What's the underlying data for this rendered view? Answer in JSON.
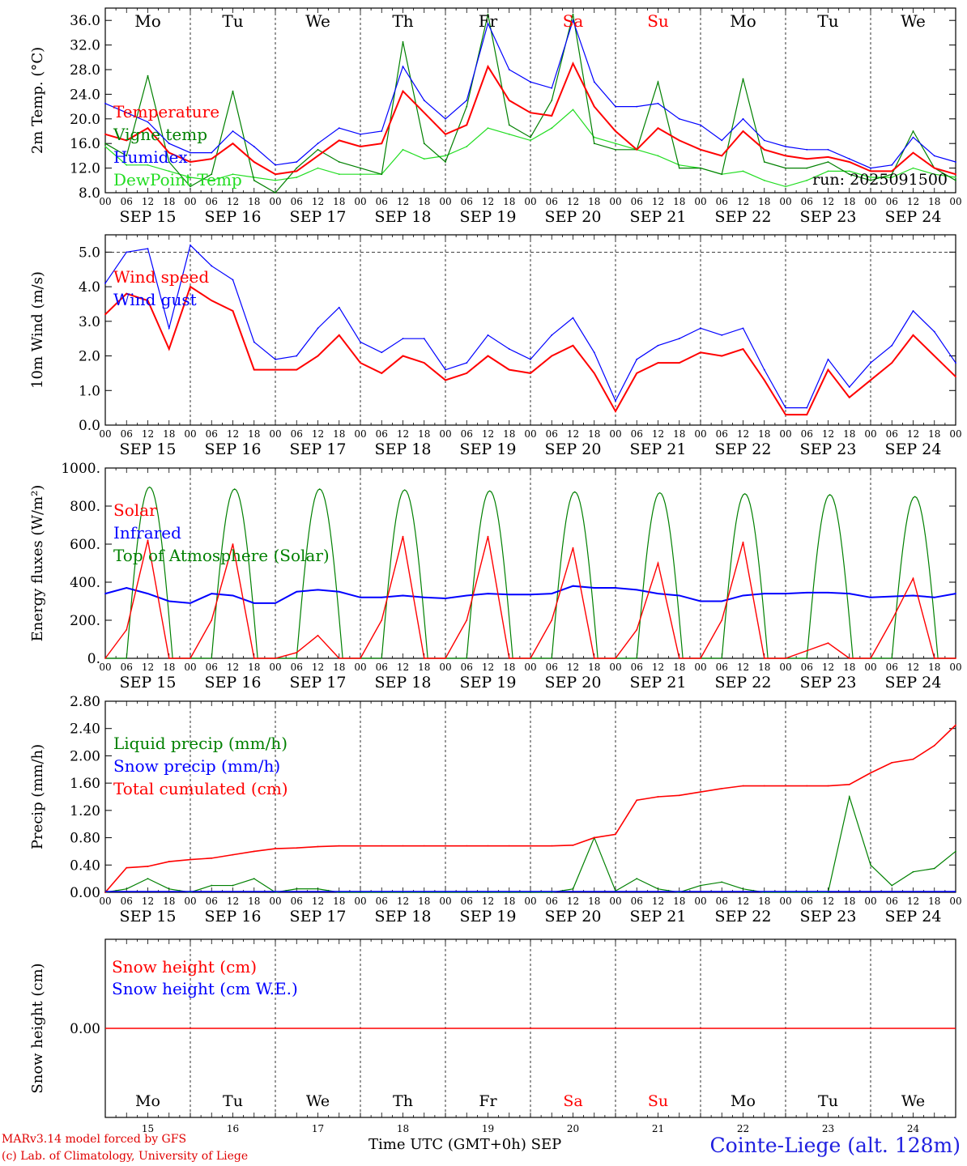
{
  "chart_data": [
    {
      "type": "line",
      "ylabel": "2m Temp. (°C)",
      "ylim": [
        8,
        38
      ],
      "yticks": [
        "8.0",
        "12.0",
        "16.0",
        "20.0",
        "24.0",
        "28.0",
        "32.0",
        "36.0"
      ],
      "x_hours": [
        0,
        6,
        12,
        18,
        24,
        30,
        36,
        42,
        48,
        54,
        60,
        66,
        72,
        78,
        84,
        90,
        96,
        102,
        108,
        114,
        120,
        126,
        132,
        138,
        144,
        150,
        156,
        162,
        168,
        174,
        180,
        186,
        192,
        198,
        204,
        210,
        216,
        222,
        228,
        234,
        240
      ],
      "annotation": "run: 2025091500",
      "series": [
        {
          "name": "Temperature",
          "color": "#ff0000",
          "values": [
            17.5,
            16.5,
            18.5,
            14.5,
            13,
            13.5,
            16,
            13,
            11,
            11.5,
            14,
            16.5,
            15.5,
            16,
            24.5,
            21,
            17.5,
            19,
            28.5,
            23,
            21,
            20.5,
            29,
            22,
            18,
            15,
            18.5,
            16.5,
            15,
            14,
            18,
            15,
            14,
            13.5,
            13.8,
            13,
            11.5,
            11.5,
            14.5,
            12,
            11
          ]
        },
        {
          "name": "Vigne temp",
          "color": "#008000",
          "values": [
            16,
            14,
            27,
            13,
            9,
            11,
            24.5,
            10,
            8,
            12,
            15,
            13,
            12,
            11,
            32.5,
            16,
            13,
            22,
            37,
            19,
            17,
            23,
            37,
            16,
            15,
            15,
            26,
            12,
            12,
            11,
            26.5,
            13,
            12,
            12,
            13,
            11,
            10,
            11,
            18,
            12,
            10
          ]
        },
        {
          "name": "Humidex",
          "color": "#0000ff",
          "values": [
            22.5,
            21,
            19.5,
            16,
            14.5,
            14.5,
            18,
            15.5,
            12.5,
            13,
            16,
            18.5,
            17.5,
            18,
            28.5,
            23,
            20,
            23,
            35.5,
            28,
            26,
            25,
            36,
            26,
            22,
            22,
            22.5,
            20,
            19,
            16.5,
            20,
            16.5,
            15.5,
            15,
            15,
            13.5,
            12,
            12.5,
            17,
            14,
            13
          ]
        },
        {
          "name": "DewPoint Temp",
          "color": "#22dd22",
          "values": [
            15.5,
            12.5,
            12.5,
            11.5,
            10.5,
            10,
            11,
            10.5,
            10,
            10.5,
            12,
            11,
            11,
            11,
            15,
            13.5,
            14,
            15.5,
            18.5,
            17.5,
            16.5,
            18.5,
            21.5,
            17,
            16,
            15,
            14,
            12.5,
            12,
            11,
            11.5,
            10,
            9,
            10,
            11.5,
            11.5,
            10.5,
            10.5,
            12,
            11,
            10.5
          ]
        }
      ]
    },
    {
      "type": "line",
      "ylabel": "10m Wind (m/s)",
      "ylim": [
        0,
        5.5
      ],
      "yticks": [
        "0.0",
        "1.0",
        "2.0",
        "3.0",
        "4.0",
        "5.0"
      ],
      "x_hours": [
        0,
        6,
        12,
        18,
        24,
        30,
        36,
        42,
        48,
        54,
        60,
        66,
        72,
        78,
        84,
        90,
        96,
        102,
        108,
        114,
        120,
        126,
        132,
        138,
        144,
        150,
        156,
        162,
        168,
        174,
        180,
        186,
        192,
        198,
        204,
        210,
        216,
        222,
        228,
        234,
        240
      ],
      "series": [
        {
          "name": "Wind speed",
          "color": "#ff0000",
          "values": [
            3.2,
            3.8,
            3.6,
            2.2,
            4.0,
            3.6,
            3.3,
            1.6,
            1.6,
            1.6,
            2.0,
            2.6,
            1.8,
            1.5,
            2.0,
            1.8,
            1.3,
            1.5,
            2.0,
            1.6,
            1.5,
            2.0,
            2.3,
            1.5,
            0.4,
            1.5,
            1.8,
            1.8,
            2.1,
            2.0,
            2.2,
            1.3,
            0.3,
            0.3,
            1.6,
            0.8,
            1.3,
            1.8,
            2.6,
            2.0,
            1.4
          ]
        },
        {
          "name": "Wind gust",
          "color": "#0000ff",
          "values": [
            4.1,
            5.0,
            5.1,
            2.8,
            5.2,
            4.6,
            4.2,
            2.4,
            1.9,
            2.0,
            2.8,
            3.4,
            2.4,
            2.1,
            2.5,
            2.5,
            1.6,
            1.8,
            2.6,
            2.2,
            1.9,
            2.6,
            3.1,
            2.1,
            0.7,
            1.9,
            2.3,
            2.5,
            2.8,
            2.6,
            2.8,
            1.6,
            0.5,
            0.5,
            1.9,
            1.1,
            1.8,
            2.3,
            3.3,
            2.7,
            1.8
          ]
        }
      ]
    },
    {
      "type": "line",
      "ylabel": "Energy fluxes (W/m²)",
      "ylim": [
        0,
        1000
      ],
      "yticks": [
        "0.",
        "200.",
        "400.",
        "600.",
        "800.",
        "1000."
      ],
      "x_hours": [
        0,
        6,
        12,
        18,
        24,
        30,
        36,
        42,
        48,
        54,
        60,
        66,
        72,
        78,
        84,
        90,
        96,
        102,
        108,
        114,
        120,
        126,
        132,
        138,
        144,
        150,
        156,
        162,
        168,
        174,
        180,
        186,
        192,
        198,
        204,
        210,
        216,
        222,
        228,
        234,
        240
      ],
      "day_peaks_toa": [
        900,
        890,
        890,
        885,
        880,
        875,
        870,
        865,
        860,
        850
      ],
      "series": [
        {
          "name": "Solar",
          "color": "#ff0000",
          "values": [
            0,
            150,
            620,
            0,
            0,
            200,
            600,
            0,
            0,
            30,
            120,
            0,
            0,
            200,
            640,
            0,
            0,
            200,
            640,
            0,
            0,
            200,
            580,
            0,
            0,
            150,
            500,
            0,
            0,
            200,
            610,
            0,
            0,
            40,
            80,
            0,
            0,
            200,
            420,
            0,
            0
          ]
        },
        {
          "name": "Infrared",
          "color": "#0000ff",
          "values": [
            340,
            370,
            340,
            300,
            290,
            340,
            330,
            290,
            290,
            350,
            360,
            350,
            320,
            320,
            330,
            320,
            315,
            330,
            340,
            335,
            335,
            340,
            380,
            370,
            370,
            360,
            340,
            330,
            300,
            300,
            330,
            340,
            340,
            345,
            345,
            340,
            320,
            325,
            330,
            320,
            340
          ]
        },
        {
          "name": "Top of Atmosphere (Solar)",
          "color": "#008000",
          "values": []
        }
      ]
    },
    {
      "type": "line",
      "ylabel": "Precip (mm/h)",
      "ylim": [
        0,
        2.8
      ],
      "yticks": [
        "0.00",
        "0.40",
        "0.80",
        "1.20",
        "1.60",
        "2.00",
        "2.40",
        "2.80"
      ],
      "x_hours": [
        0,
        6,
        12,
        18,
        24,
        30,
        36,
        42,
        48,
        54,
        60,
        66,
        72,
        78,
        84,
        90,
        96,
        102,
        108,
        114,
        120,
        126,
        132,
        138,
        144,
        150,
        156,
        162,
        168,
        174,
        180,
        186,
        192,
        198,
        204,
        210,
        216,
        222,
        228,
        234,
        240
      ],
      "series": [
        {
          "name": "Liquid precip (mm/h)",
          "color": "#008000",
          "values": [
            0,
            0.05,
            0.2,
            0.05,
            0,
            0.1,
            0.1,
            0.2,
            0,
            0.05,
            0.05,
            0,
            0,
            0,
            0,
            0,
            0,
            0,
            0,
            0,
            0,
            0,
            0.05,
            0.8,
            0.02,
            0.2,
            0.05,
            0,
            0.1,
            0.15,
            0.05,
            0,
            0,
            0,
            0,
            1.4,
            0.4,
            0.1,
            0.3,
            0.35,
            0.6
          ]
        },
        {
          "name": "Snow precip (mm/h)",
          "color": "#0000ff",
          "values": []
        },
        {
          "name": "Total cumulated (cm)",
          "color": "#ff0000",
          "values": [
            0,
            0.36,
            0.38,
            0.45,
            0.48,
            0.5,
            0.55,
            0.6,
            0.64,
            0.65,
            0.67,
            0.68,
            0.68,
            0.68,
            0.68,
            0.68,
            0.68,
            0.68,
            0.68,
            0.68,
            0.68,
            0.68,
            0.69,
            0.8,
            0.85,
            1.35,
            1.4,
            1.42,
            1.47,
            1.52,
            1.56,
            1.56,
            1.56,
            1.56,
            1.56,
            1.58,
            1.75,
            1.9,
            1.95,
            2.15,
            2.45
          ]
        }
      ]
    },
    {
      "type": "line",
      "ylabel": "Snow height (cm)",
      "yticks": [
        "0.00"
      ],
      "series": [
        {
          "name": "Snow height (cm)",
          "color": "#ff0000",
          "values": [
            0,
            0
          ]
        },
        {
          "name": "Snow height (cm W.E.)",
          "color": "#0000ff",
          "values": []
        }
      ]
    }
  ],
  "x_axis": {
    "hour_ticks": [
      "00",
      "06",
      "12",
      "18"
    ],
    "end_tick": "00",
    "date_labels": [
      "SEP 15",
      "SEP 16",
      "SEP 17",
      "SEP 18",
      "SEP 19",
      "SEP 20",
      "SEP 21",
      "SEP 22",
      "SEP 23",
      "SEP 24"
    ],
    "weekdays": [
      "Mo",
      "Tu",
      "We",
      "Th",
      "Fr",
      "Sa",
      "Su",
      "Mo",
      "Tu",
      "We"
    ],
    "weekend_flags": [
      false,
      false,
      false,
      false,
      false,
      true,
      true,
      false,
      false,
      false
    ],
    "day_numbers": [
      "15",
      "16",
      "17",
      "18",
      "19",
      "20",
      "21",
      "22",
      "23",
      "24"
    ],
    "xlabel": "Time UTC (GMT+0h)",
    "month": "SEP"
  },
  "colors": {
    "weekday": "#000000",
    "weekend": "#ff0000",
    "axis": "#000000",
    "grid": "#000000"
  },
  "footer": {
    "credit_line1": "MARv3.14 model forced by GFS",
    "credit_line2": "(c) Lab. of Climatology, University of Liege",
    "station": "Cointe-Liege (alt. 128m)"
  }
}
